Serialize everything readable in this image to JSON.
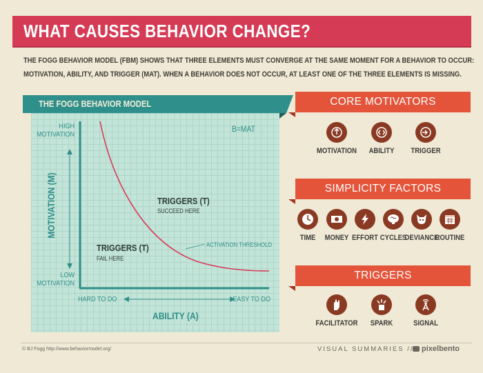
{
  "title": "WHAT CAUSES BEHAVIOR CHANGE?",
  "intro": [
    "THE FOGG BEHAVIOR MODEL (FBM) SHOWS THAT THREE ELEMENTS MUST CONVERGE AT THE SAME MOMENT FOR A BEHAVIOR TO OCCUR:",
    "MOTIVATION, ABILITY, AND TRIGGER (MAT). WHEN A BEHAVIOR DOES NOT OCCUR, AT LEAST ONE OF THE THREE ELEMENTS IS MISSING."
  ],
  "model": {
    "title": "THE FOGG BEHAVIOR MODEL",
    "formula": "B=MAT",
    "y_top": [
      "HIGH",
      "MOTIVATION"
    ],
    "y_bottom": [
      "LOW",
      "MOTIVATION"
    ],
    "y_axis": "MOTIVATION (M)",
    "x_left": "HARD TO DO",
    "x_right": "EASY TO DO",
    "x_axis": "ABILITY (A)",
    "zone_above_title": "TRIGGERS (T)",
    "zone_above_sub": "SUCCEED HERE",
    "zone_below_title": "TRIGGERS (T)",
    "zone_below_sub": "FAIL HERE",
    "curve_label": "ACTIVATION THRESHOLD",
    "curve_color": "#d63b55",
    "axis_color": "#2f8f8a"
  },
  "core_motivators": {
    "title": "CORE MOTIVATORS",
    "items": [
      {
        "label": "MOTIVATION",
        "icon": "motivation-icon"
      },
      {
        "label": "ABILITY",
        "icon": "ability-icon"
      },
      {
        "label": "TRIGGER",
        "icon": "trigger-icon"
      }
    ]
  },
  "simplicity_factors": {
    "title": "SIMPLICITY FACTORS",
    "items": [
      {
        "label": "TIME",
        "icon": "clock-icon"
      },
      {
        "label": "MONEY",
        "icon": "money-icon"
      },
      {
        "label": "EFFORT",
        "icon": "lightning-icon"
      },
      {
        "label": "CYCLES",
        "icon": "brain-icon"
      },
      {
        "label": "DEVIANCE",
        "icon": "devil-icon"
      },
      {
        "label": "ROUTINE",
        "icon": "calendar-icon"
      }
    ]
  },
  "triggers": {
    "title": "TRIGGERS",
    "items": [
      {
        "label": "FACILITATOR",
        "icon": "hand-icon"
      },
      {
        "label": "SPARK",
        "icon": "spark-icon"
      },
      {
        "label": "SIGNAL",
        "icon": "signal-icon"
      }
    ]
  },
  "footer": {
    "copyright": "© BJ Fogg http://www.behaviormodel.org/",
    "series": "VISUAL SUMMARIES //",
    "brand": "pixelbento"
  },
  "colors": {
    "banner": "#d63b55",
    "teal": "#2f8f8a",
    "orange": "#e4543a",
    "icon_bg": "#8a3a22",
    "background": "#efe9d6"
  }
}
